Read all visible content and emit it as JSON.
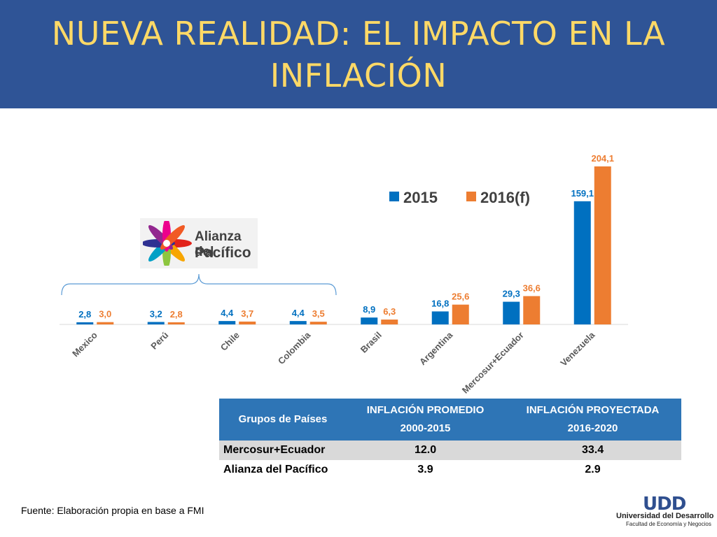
{
  "header": {
    "title_line1": "NUEVA REALIDAD: EL IMPACTO EN LA",
    "title_line2": "INFLACIÓN"
  },
  "chart_data": {
    "type": "bar",
    "categories": [
      "Mexico",
      "Perú",
      "Chile",
      "Colombia",
      "Brasil",
      "Argentina",
      "Mercosur+Ecuador",
      "Venezuela"
    ],
    "series": [
      {
        "name": "2015",
        "color": "#0070c0",
        "values": [
          2.8,
          3.2,
          4.4,
          4.4,
          8.9,
          16.8,
          29.3,
          159.1
        ],
        "labels": [
          "2,8",
          "3,2",
          "4,4",
          "4,4",
          "8,9",
          "16,8",
          "29,3",
          "159,1"
        ]
      },
      {
        "name": "2016(f)",
        "color": "#ed7d31",
        "values": [
          3.0,
          2.8,
          3.7,
          3.5,
          6.3,
          25.6,
          36.6,
          204.1
        ],
        "labels": [
          "3,0",
          "2,8",
          "3,7",
          "3,5",
          "6,3",
          "25,6",
          "36,6",
          "204,1"
        ]
      }
    ],
    "legend_position": "top-right",
    "grid": false,
    "ylim": [
      0,
      204.1
    ]
  },
  "logo": {
    "line1": "Alianza del",
    "line2": "Pacífico"
  },
  "table": {
    "headers": [
      {
        "line1": "Grupos de Países",
        "line2": ""
      },
      {
        "line1": "INFLACIÓN PROMEDIO",
        "line2": "2000-2015"
      },
      {
        "line1": "INFLACIÓN PROYECTADA",
        "line2": "2016-2020"
      }
    ],
    "rows": [
      {
        "name": "Mercosur+Ecuador",
        "avg": "12.0",
        "proj": "33.4"
      },
      {
        "name": "Alianza del Pacífico",
        "avg": "3.9",
        "proj": "2.9"
      }
    ]
  },
  "footer": {
    "source": "Fuente: Elaboración propia en base a FMI",
    "udd_mark": "UDD",
    "udd_name": "Universidad del Desarrollo",
    "udd_faculty": "Facultad de Economía y Negocios"
  }
}
